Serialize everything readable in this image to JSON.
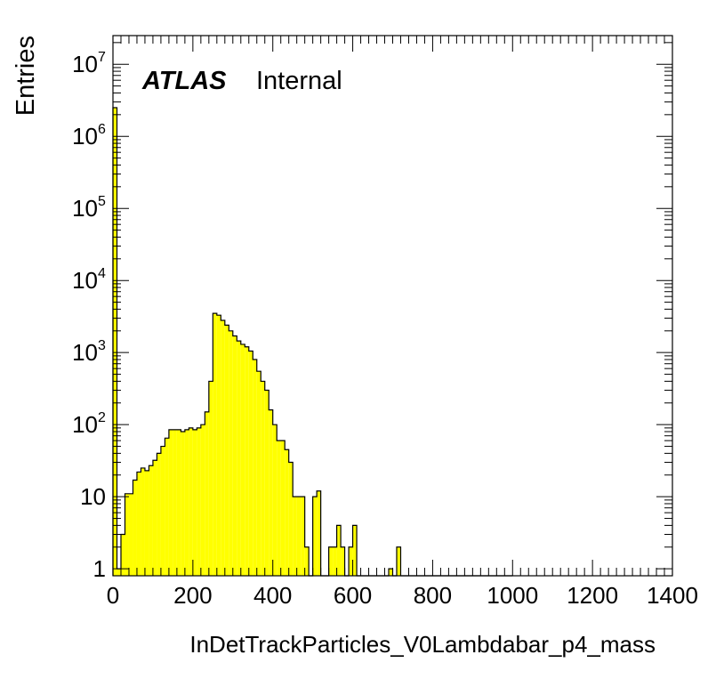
{
  "chart_data": {
    "type": "bar",
    "style": "histogram-step",
    "title": "",
    "label": {
      "brand": "ATLAS",
      "status": "Internal"
    },
    "xlabel": "InDetTrackParticles_V0Lambdabar_p4_mass",
    "ylabel": "Entries",
    "xlim": [
      0,
      1400
    ],
    "ylim": [
      0.8,
      25000000
    ],
    "y_scale": "log",
    "x_ticks": [
      "0",
      "200",
      "400",
      "600",
      "800",
      "1000",
      "1200",
      "1400"
    ],
    "y_ticks": [
      {
        "value": 1,
        "label": "1"
      },
      {
        "value": 10,
        "label": "10"
      },
      {
        "value": 100,
        "label": "10",
        "exp": "2"
      },
      {
        "value": 1000,
        "label": "10",
        "exp": "3"
      },
      {
        "value": 10000,
        "label": "10",
        "exp": "4"
      },
      {
        "value": 100000,
        "label": "10",
        "exp": "5"
      },
      {
        "value": 1000000,
        "label": "10",
        "exp": "6"
      },
      {
        "value": 10000000,
        "label": "10",
        "exp": "7"
      }
    ],
    "bin_width": 10,
    "bin_low_edges": [
      0,
      10,
      20,
      30,
      40,
      50,
      60,
      70,
      80,
      90,
      100,
      110,
      120,
      130,
      140,
      150,
      160,
      170,
      180,
      190,
      200,
      210,
      220,
      230,
      240,
      250,
      260,
      270,
      280,
      290,
      300,
      310,
      320,
      330,
      340,
      350,
      360,
      370,
      380,
      390,
      400,
      410,
      420,
      430,
      440,
      450,
      460,
      470,
      480,
      490,
      500,
      510,
      520,
      530,
      540,
      550,
      560,
      570,
      580,
      590,
      600,
      610,
      620,
      630,
      640,
      650,
      660,
      670,
      680,
      690,
      700,
      710,
      720,
      730,
      740,
      750,
      760,
      770,
      780,
      790,
      800,
      810,
      820,
      830,
      840,
      850,
      860,
      870,
      880,
      890,
      900,
      910,
      920,
      930,
      940,
      950,
      960,
      970,
      980,
      990
    ],
    "values": [
      2500000,
      1,
      3,
      11,
      11,
      17,
      22,
      25,
      23,
      27,
      32,
      40,
      50,
      65,
      85,
      85,
      85,
      80,
      85,
      90,
      85,
      90,
      100,
      150,
      400,
      3500,
      3300,
      2800,
      2400,
      2000,
      1700,
      1450,
      1300,
      1200,
      1050,
      800,
      550,
      400,
      300,
      160,
      100,
      60,
      60,
      45,
      30,
      10,
      10,
      10,
      2,
      0,
      10,
      12,
      0,
      0,
      2,
      2,
      4,
      2,
      0,
      2,
      4,
      0,
      0,
      0,
      0,
      0,
      0,
      0,
      0,
      1,
      0,
      2,
      0,
      0,
      0,
      0,
      0,
      0,
      0,
      0,
      0,
      0,
      0,
      0,
      0,
      0,
      0,
      0,
      0,
      0,
      0,
      0,
      0,
      0,
      0,
      0,
      0,
      0,
      0,
      0
    ],
    "fill_color": "#ffff00",
    "line_color": "#000000",
    "grid": false,
    "legend": "none"
  }
}
